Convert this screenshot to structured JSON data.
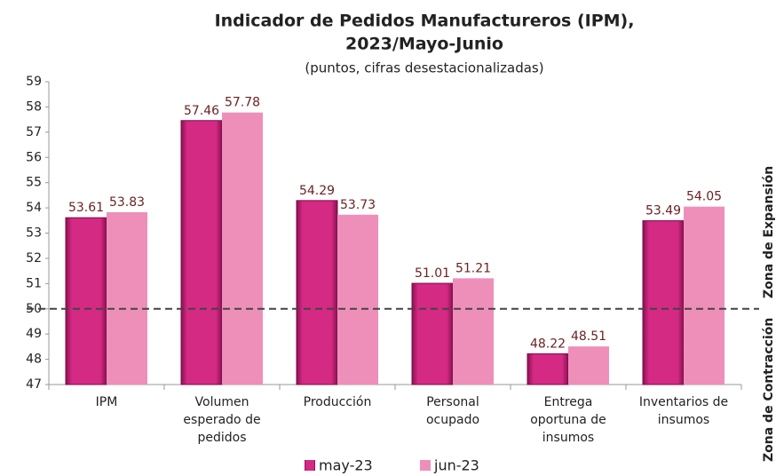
{
  "chart_data": {
    "type": "bar",
    "title": [
      "Indicador de Pedidos Manufactureros (IPM),",
      "2023/Mayo-Junio"
    ],
    "subtitle": "(puntos, cifras desestacionalizadas)",
    "categories": [
      "IPM",
      "Volumen esperado de pedidos",
      "Producción",
      "Personal ocupado",
      "Entrega oportuna de insumos",
      "Inventarios de insumos"
    ],
    "series": [
      {
        "name": "may-23",
        "color": "#d42a84",
        "values": [
          53.61,
          57.46,
          54.29,
          51.01,
          48.22,
          53.49
        ]
      },
      {
        "name": "jun-23",
        "color": "#ee8fba",
        "values": [
          53.83,
          57.78,
          53.73,
          51.21,
          48.51,
          54.05
        ]
      }
    ],
    "ylim": [
      47,
      59
    ],
    "yticks": [
      47,
      48,
      49,
      50,
      51,
      52,
      53,
      54,
      55,
      56,
      57,
      58,
      59
    ],
    "threshold": 50,
    "annotations": [
      "Zona de Contracción",
      "Zona de Expansión"
    ],
    "legend": "bottom"
  }
}
